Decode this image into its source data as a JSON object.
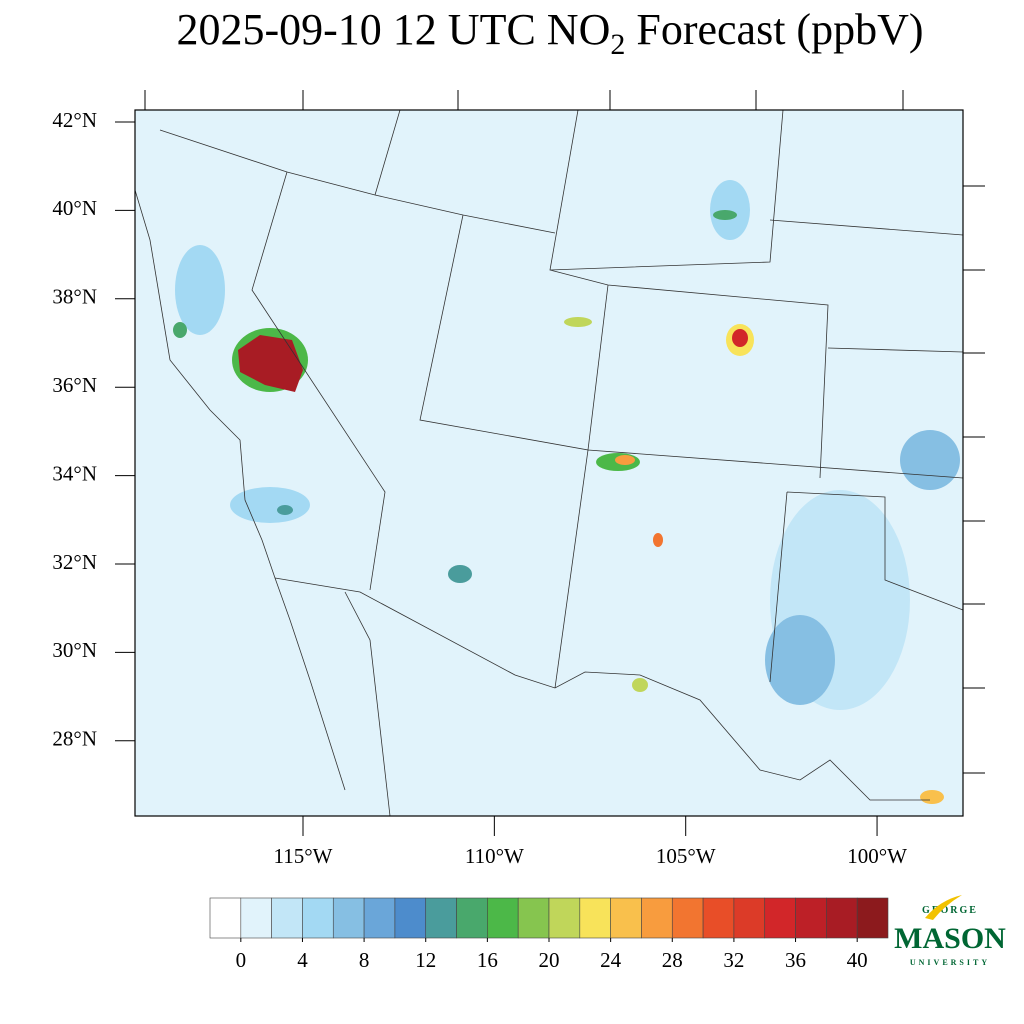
{
  "title": {
    "prefix": "2025-09-10 12 UTC NO",
    "subscript": "2",
    "suffix": " Forecast (ppbV)"
  },
  "map": {
    "lat_ticks": [
      {
        "value": 42,
        "label": "42°N"
      },
      {
        "value": 40,
        "label": "40°N"
      },
      {
        "value": 38,
        "label": "38°N"
      },
      {
        "value": 36,
        "label": "36°N"
      },
      {
        "value": 34,
        "label": "34°N"
      },
      {
        "value": 32,
        "label": "32°N"
      },
      {
        "value": 30,
        "label": "30°N"
      },
      {
        "value": 28,
        "label": "28°N"
      }
    ],
    "lon_ticks": [
      {
        "value": -115,
        "label": "115°W"
      },
      {
        "value": -110,
        "label": "110°W"
      },
      {
        "value": -105,
        "label": "105°W"
      },
      {
        "value": -100,
        "label": "100°W"
      }
    ]
  },
  "colorbar": {
    "colors": [
      "#ffffff",
      "#e1f3fb",
      "#c2e6f7",
      "#a3d9f3",
      "#86bfe3",
      "#6aa6d9",
      "#4d8ccc",
      "#4a9c9c",
      "#49a86c",
      "#4cb848",
      "#86c54f",
      "#c0d65a",
      "#f8e35a",
      "#f9c04c",
      "#f89c3e",
      "#f27530",
      "#e84e28",
      "#dc3b28",
      "#d22629",
      "#bd2027",
      "#a81c24",
      "#8c1a1d"
    ],
    "ticks": [
      0,
      4,
      8,
      12,
      16,
      20,
      24,
      28,
      32,
      36,
      40
    ]
  },
  "logo": {
    "top": "GEORGE",
    "name": "MASON",
    "sub": "UNIVERSITY"
  }
}
